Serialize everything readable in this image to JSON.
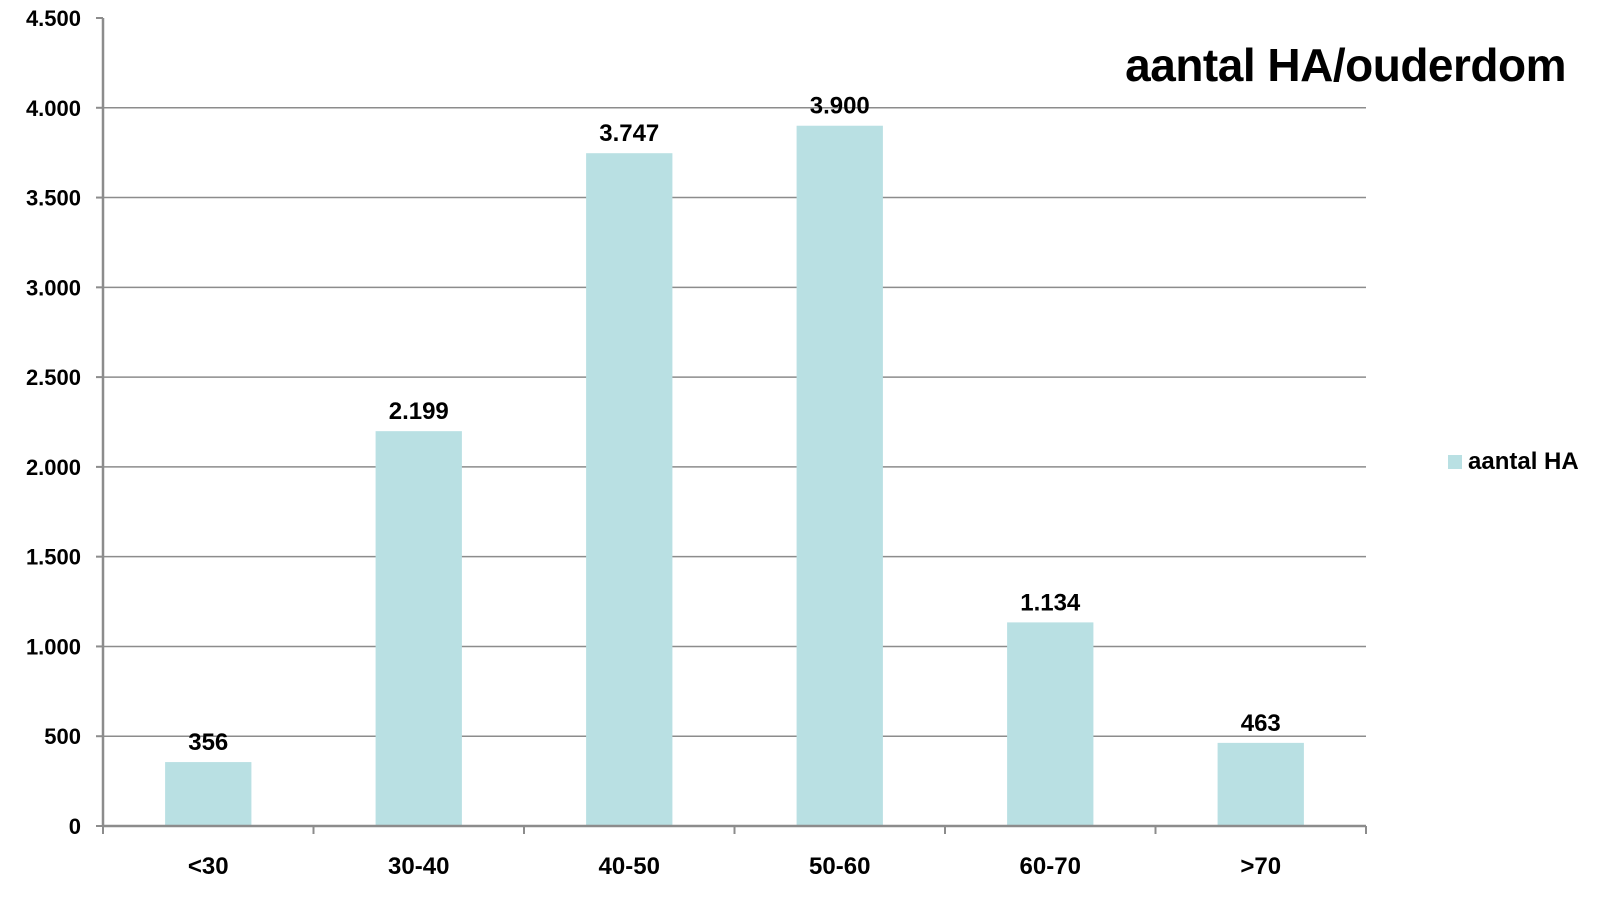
{
  "chart_data": {
    "type": "bar",
    "title": "aantal HA/ouderdom",
    "xlabel": "",
    "ylabel": "",
    "categories": [
      "<30",
      "30-40",
      "40-50",
      "50-60",
      "60-70",
      ">70"
    ],
    "series": [
      {
        "name": "aantal HA",
        "values": [
          356,
          2199,
          3747,
          3900,
          1134,
          463
        ],
        "value_labels": [
          "356",
          "2.199",
          "3.747",
          "3.900",
          "1.134",
          "463"
        ],
        "color": "#b9e0e3"
      }
    ],
    "ylim": [
      0,
      4500
    ],
    "yticks": [
      0,
      500,
      1000,
      1500,
      2000,
      2500,
      3000,
      3500,
      4000,
      4500
    ],
    "ytick_labels": [
      "0",
      "500",
      "1.000",
      "1.500",
      "2.000",
      "2.500",
      "3.000",
      "3.500",
      "4.000",
      "4.500"
    ],
    "grid": true,
    "legend_position": "right"
  },
  "colors": {
    "bar": "#b9e0e3",
    "grid": "#8c8c8c",
    "axis": "#8c8c8c"
  }
}
